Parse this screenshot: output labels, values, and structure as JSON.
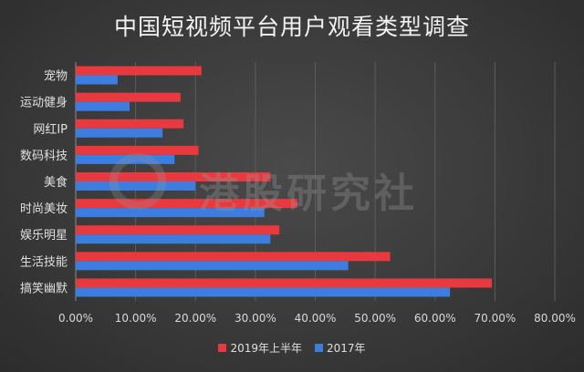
{
  "chart_data": {
    "type": "bar",
    "orientation": "horizontal",
    "title": "中国短视频平台用户观看类型调查",
    "categories": [
      "宠物",
      "运动健身",
      "网红IP",
      "数码科技",
      "美食",
      "时尚美妆",
      "娱乐明星",
      "生活技能",
      "搞笑幽默"
    ],
    "series": [
      {
        "name": "2019年上半年",
        "color": "#e8393f",
        "values": [
          21,
          17.5,
          18,
          20.5,
          32.5,
          37,
          34,
          52.5,
          69.5
        ]
      },
      {
        "name": "2017年",
        "color": "#3e7de0",
        "values": [
          7,
          9,
          14.5,
          16.5,
          20,
          31.5,
          32.5,
          45.5,
          62.5
        ]
      }
    ],
    "xlim": [
      0,
      80
    ],
    "xticks": [
      0,
      10,
      20,
      30,
      40,
      50,
      60,
      70,
      80
    ],
    "xtick_labels": [
      "0.00%",
      "10.00%",
      "20.00%",
      "30.00%",
      "40.00%",
      "50.00%",
      "60.00%",
      "70.00%",
      "80.00%"
    ],
    "xlabel": "",
    "ylabel": "",
    "grid": true,
    "legend_position": "bottom"
  },
  "watermark": "港股研究社"
}
